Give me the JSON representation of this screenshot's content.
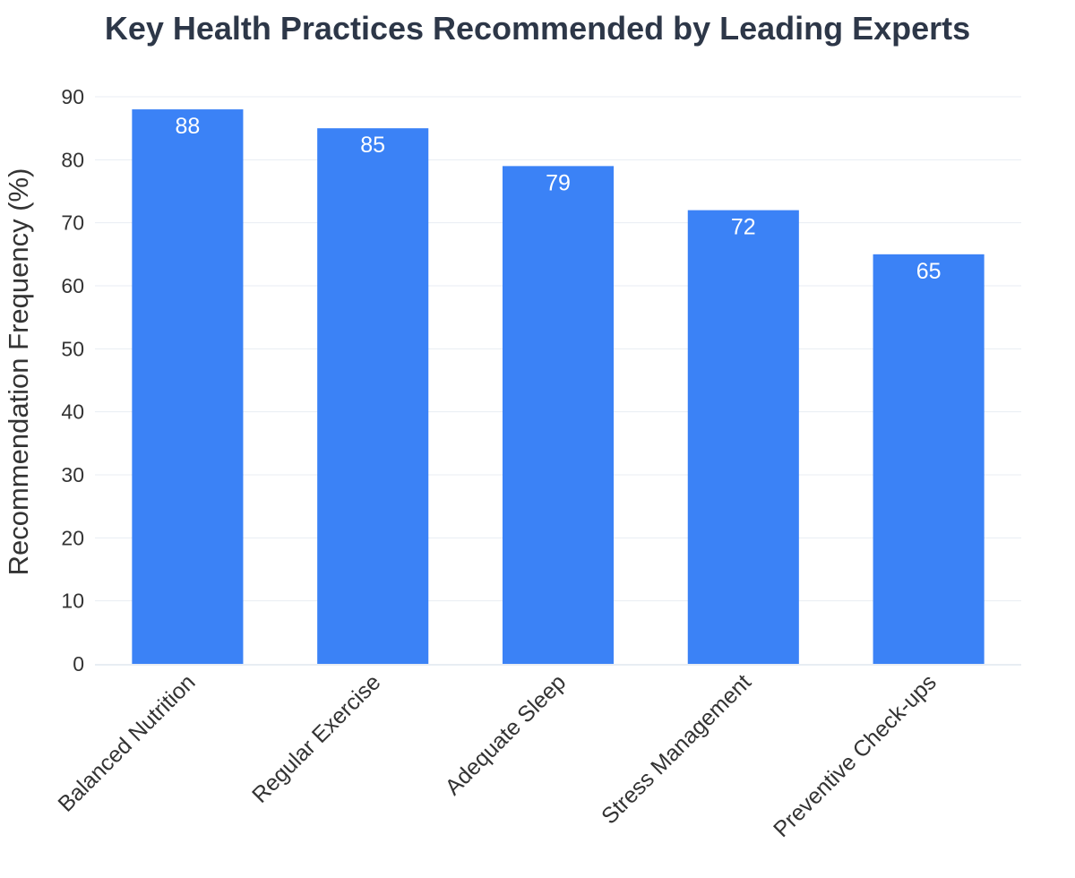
{
  "colors": {
    "bar": "#3b82f6",
    "title": "#2d3748",
    "axis_text": "#333333",
    "grid": "#e8edf3",
    "value_label": "#ffffff"
  },
  "chart_data": {
    "type": "bar",
    "title": "Key Health Practices Recommended by Leading Experts",
    "xlabel": "",
    "ylabel": "Recommendation Frequency (%)",
    "categories": [
      "Balanced Nutrition",
      "Regular Exercise",
      "Adequate Sleep",
      "Stress Management",
      "Preventive Check-ups"
    ],
    "values": [
      88,
      85,
      79,
      72,
      65
    ],
    "ylim": [
      0,
      90
    ],
    "yticks": [
      0,
      10,
      20,
      30,
      40,
      50,
      60,
      70,
      80,
      90
    ],
    "grid": true,
    "data_labels": true,
    "legend": "none"
  }
}
